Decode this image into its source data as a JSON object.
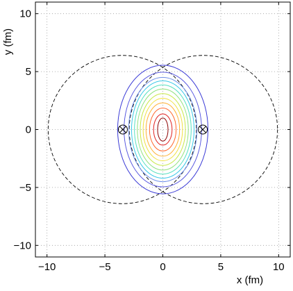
{
  "chart_data": {
    "type": "contour",
    "xlabel": "x (fm)",
    "ylabel": "y (fm)",
    "xlim": [
      -11,
      11
    ],
    "ylim": [
      -11,
      11
    ],
    "grid": true,
    "grid_style": "dotted",
    "x_ticks": [
      -10,
      -5,
      0,
      5,
      10
    ],
    "y_ticks": [
      -10,
      -5,
      0,
      5,
      10
    ],
    "x_tick_labels": [
      "−10",
      "−5",
      "0",
      "5",
      "10"
    ],
    "y_tick_labels": [
      "−10",
      "−5",
      "0",
      "5",
      "10"
    ],
    "nucleus_outlines": [
      {
        "center": [
          -3.5,
          0
        ],
        "radius": 6.4,
        "style": "dashed",
        "color": "#000000"
      },
      {
        "center": [
          3.5,
          0
        ],
        "radius": 6.4,
        "style": "dashed",
        "color": "#000000"
      }
    ],
    "nucleus_centers": [
      {
        "x": -3.45,
        "y": 0,
        "marker": "circle-x"
      },
      {
        "x": 3.45,
        "y": 0,
        "marker": "circle-x"
      }
    ],
    "contours": [
      {
        "rx": 3.9,
        "ry": 5.55,
        "color": "#3a3ad6"
      },
      {
        "rx": 3.35,
        "ry": 4.95,
        "color": "#5a5ae0"
      },
      {
        "rx": 2.95,
        "ry": 4.5,
        "color": "#6f8fe8"
      },
      {
        "rx": 2.7,
        "ry": 4.2,
        "color": "#39c8e8"
      },
      {
        "rx": 2.45,
        "ry": 3.85,
        "color": "#55e0c0"
      },
      {
        "rx": 2.2,
        "ry": 3.5,
        "color": "#8ee07a"
      },
      {
        "rx": 1.95,
        "ry": 3.1,
        "color": "#c8e84a"
      },
      {
        "rx": 1.7,
        "ry": 2.7,
        "color": "#f0e040"
      },
      {
        "rx": 1.45,
        "ry": 2.3,
        "color": "#ffb030"
      },
      {
        "rx": 1.15,
        "ry": 1.85,
        "color": "#ff6a30"
      },
      {
        "rx": 0.8,
        "ry": 1.35,
        "color": "#e02020"
      },
      {
        "rx": 0.45,
        "ry": 1.0,
        "color": "#8b0000"
      }
    ]
  }
}
